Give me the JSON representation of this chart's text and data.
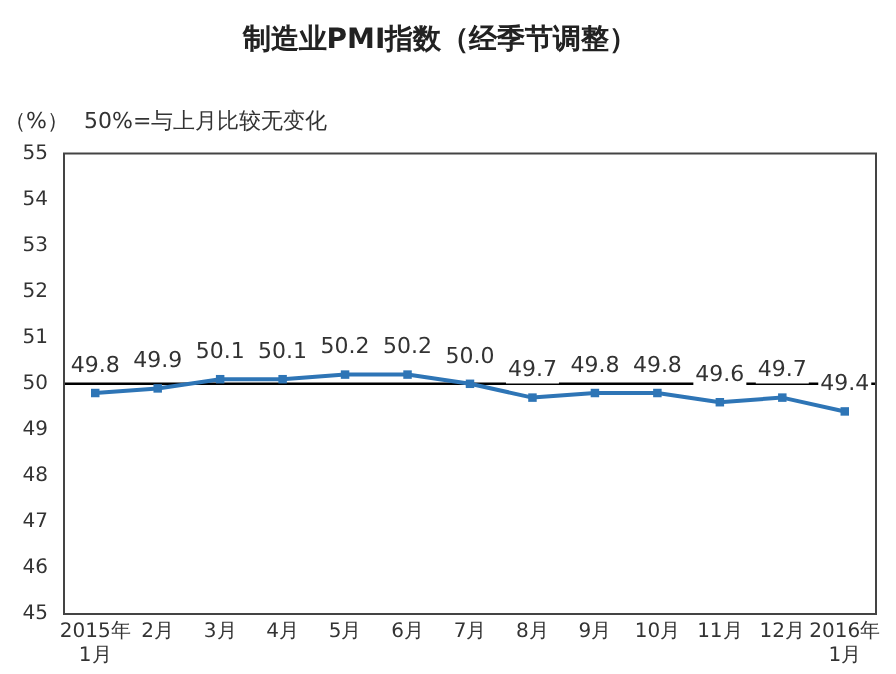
{
  "chart_data": {
    "type": "line",
    "title": "制造业PMI指数（经季节调整）",
    "ylabel": "（%）",
    "annotations": [
      "50%=与上月比较无变化"
    ],
    "categories": [
      "2015年\n1月",
      "2月",
      "3月",
      "4月",
      "5月",
      "6月",
      "7月",
      "8月",
      "9月",
      "10月",
      "11月",
      "12月",
      "2016年\n1月"
    ],
    "series": [
      {
        "color": "#2e75b6",
        "values": [
          49.8,
          49.9,
          50.1,
          50.1,
          50.2,
          50.2,
          50.0,
          49.7,
          49.8,
          49.8,
          49.6,
          49.7,
          49.4
        ],
        "value_labels": [
          "49.8",
          "49.9",
          "50.1",
          "50.1",
          "50.2",
          "50.2",
          "50.0",
          "49.7",
          "49.8",
          "49.8",
          "49.6",
          "49.7",
          "49.4"
        ]
      }
    ],
    "ylim": [
      45,
      55
    ],
    "yticks": [
      45,
      46,
      47,
      48,
      49,
      50,
      51,
      52,
      53,
      54,
      55
    ],
    "ref_lines": [
      {
        "axis": "y",
        "value": 50,
        "color": "#000000"
      }
    ],
    "grid": false,
    "legend": false,
    "marker": "square",
    "line_style": "solid"
  }
}
